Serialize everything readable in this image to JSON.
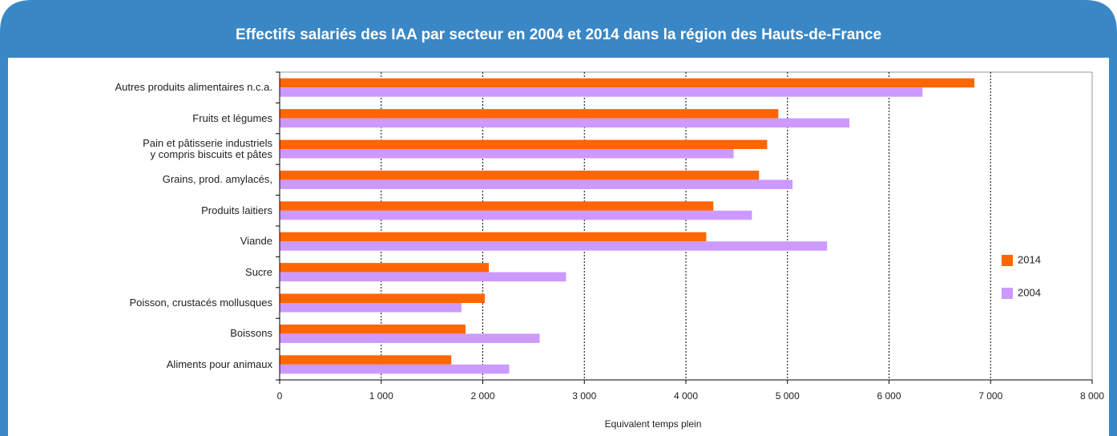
{
  "chart_data": {
    "type": "barh",
    "title": "Effectifs salariés des IAA par secteur en 2004 et 2014 dans la région des Hauts-de-France",
    "xlabel": "Equivalent temps plein",
    "categories": [
      "Autres produits alimentaires n.c.a.",
      "Fruits et légumes",
      "Pain et pâtisserie industriels\ny compris biscuits et pâtes",
      "Grains, prod. amylacés,",
      "Produits laitiers",
      "Viande",
      "Sucre",
      "Poisson, crustacés mollusques",
      "Boissons",
      "Aliments pour animaux"
    ],
    "series": [
      {
        "name": "2014",
        "color": "#ff6600",
        "values": [
          6840,
          4910,
          4800,
          4720,
          4270,
          4200,
          2060,
          2020,
          1830,
          1690
        ]
      },
      {
        "name": "2004",
        "color": "#cc99ff",
        "values": [
          6330,
          5610,
          4470,
          5050,
          4650,
          5390,
          2820,
          1790,
          2560,
          2260
        ]
      }
    ],
    "xlim": [
      0,
      8000
    ],
    "xticks": [
      0,
      {
        "value": 1000,
        "label": "1 000"
      },
      {
        "value": 2000,
        "label": "2 000"
      },
      {
        "value": 3000,
        "label": "3 000"
      },
      {
        "value": 4000,
        "label": "4 000"
      },
      {
        "value": 5000,
        "label": "5 000"
      },
      {
        "value": 6000,
        "label": "6 000"
      },
      {
        "value": 7000,
        "label": "7 000"
      },
      {
        "value": 8000,
        "label": "8 000"
      }
    ],
    "grid": true,
    "legend": "right"
  }
}
